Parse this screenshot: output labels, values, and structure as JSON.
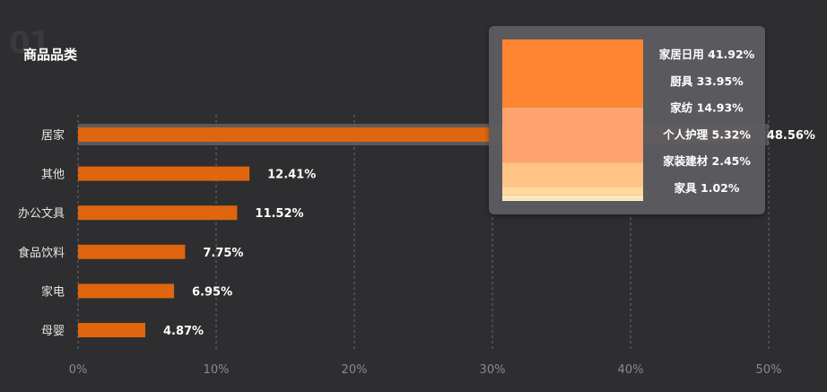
{
  "page": {
    "section_number": "01",
    "title": "商品品类"
  },
  "chart_data": {
    "type": "bar",
    "orientation": "horizontal",
    "title": "商品品类",
    "categories": [
      "居家",
      "其他",
      "办公文具",
      "食品饮料",
      "家电",
      "母婴"
    ],
    "values": [
      48.56,
      12.41,
      11.52,
      7.75,
      6.95,
      4.87
    ],
    "value_labels": [
      "48.56%",
      "12.41%",
      "11.52%",
      "7.75%",
      "6.95%",
      "4.87%"
    ],
    "highlighted_category": "居家",
    "x_ticks": [
      "0%",
      "10%",
      "20%",
      "30%",
      "40%",
      "50%"
    ],
    "xlim": [
      0,
      50
    ],
    "grid": "vertical dashed",
    "bar_color": "#e0650f",
    "tooltip": {
      "category": "居家",
      "type": "stacked-area",
      "items": [
        {
          "name": "家居日用",
          "value": 41.92,
          "label": "家居日用 41.92%",
          "color": "#ff8533"
        },
        {
          "name": "厨具",
          "value": 33.95,
          "label": "厨具 33.95%",
          "color": "#ffa36e"
        },
        {
          "name": "家纺",
          "value": 14.93,
          "label": "家纺 14.93%",
          "color": "#ffc485"
        },
        {
          "name": "个人护理",
          "value": 5.32,
          "label": "个人护理 5.32%",
          "color": "#ffd9a0"
        },
        {
          "name": "家装建材",
          "value": 2.45,
          "label": "家装建材 2.45%",
          "color": "#ffe7b8"
        },
        {
          "name": "家具",
          "value": 1.02,
          "label": "家具 1.02%",
          "color": "#fff2cf"
        }
      ]
    }
  }
}
